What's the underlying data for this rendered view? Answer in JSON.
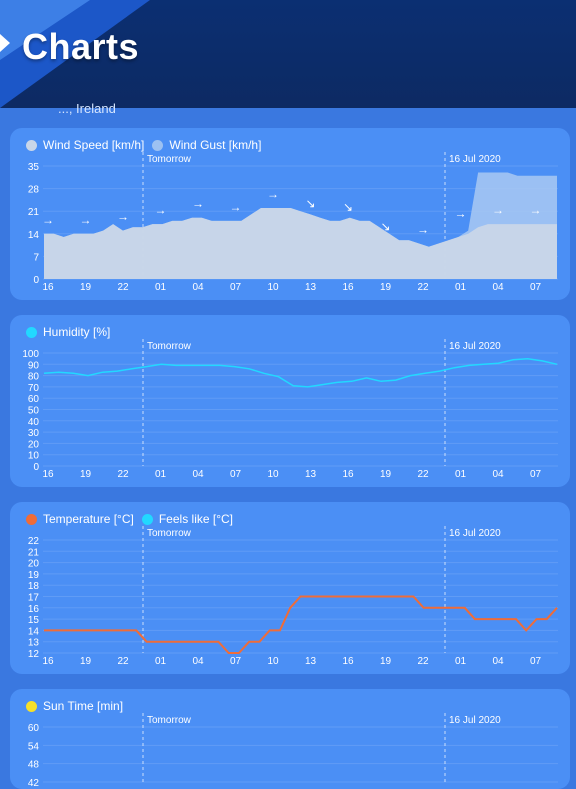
{
  "app": {
    "title": "Charts",
    "location": "..., Ireland"
  },
  "x_ticks": [
    "16",
    "19",
    "22",
    "01",
    "04",
    "07",
    "10",
    "13",
    "16",
    "19",
    "22",
    "01",
    "04",
    "07"
  ],
  "day_markers": [
    "Tomorrow",
    "16 Jul 2020"
  ],
  "chart_data": [
    {
      "type": "area",
      "legend": [
        {
          "name": "Wind Speed [km/h]",
          "color": "#c9d6e8"
        },
        {
          "name": "Wind Gust [km/h]",
          "color": "#9cc1f2"
        }
      ],
      "ylim": [
        0,
        35
      ],
      "yticks": [
        0,
        7,
        14,
        21,
        28,
        35
      ],
      "series": [
        {
          "name": "Wind Speed [km/h]",
          "values": [
            14,
            14,
            13,
            14,
            14,
            14,
            15,
            17,
            15,
            16,
            16,
            17,
            17,
            18,
            18,
            19,
            19,
            18,
            18,
            18,
            18,
            20,
            22,
            22,
            22,
            22,
            21,
            20,
            19,
            18,
            18,
            19,
            18,
            18,
            16,
            14,
            12,
            12,
            11,
            10,
            11,
            12,
            13,
            14,
            16,
            17,
            17,
            17,
            17,
            17,
            17,
            17,
            17
          ]
        },
        {
          "name": "Wind Gust [km/h]",
          "values": [
            14,
            14,
            13,
            14,
            14,
            14,
            15,
            17,
            15,
            16,
            16,
            17,
            17,
            18,
            18,
            19,
            19,
            18,
            18,
            18,
            18,
            20,
            22,
            22,
            22,
            22,
            21,
            20,
            19,
            18,
            18,
            19,
            18,
            18,
            16,
            14,
            12,
            12,
            11,
            10,
            11,
            12,
            13,
            15,
            33,
            33,
            33,
            33,
            32,
            32,
            32,
            32,
            32
          ]
        }
      ],
      "direction_arrows": [
        "→",
        "→",
        "→",
        "→",
        "→",
        "→",
        "→",
        "↘",
        "↘",
        "↘",
        "→",
        "→",
        "→",
        "→"
      ]
    },
    {
      "type": "line",
      "legend": [
        {
          "name": "Humidity [%]",
          "color": "#22d8ff"
        }
      ],
      "ylim": [
        0,
        100
      ],
      "yticks": [
        0,
        10,
        20,
        30,
        40,
        50,
        60,
        70,
        80,
        90,
        100
      ],
      "series": [
        {
          "name": "Humidity [%]",
          "values": [
            82,
            83,
            82,
            80,
            83,
            84,
            86,
            88,
            90,
            89,
            89,
            89,
            89,
            88,
            86,
            82,
            79,
            71,
            70,
            72,
            74,
            75,
            78,
            75,
            76,
            80,
            82,
            84,
            87,
            89,
            90,
            91,
            94,
            95,
            93,
            90
          ]
        }
      ]
    },
    {
      "type": "line",
      "legend": [
        {
          "name": "Temperature [°C]",
          "color": "#ef6c38"
        },
        {
          "name": "Feels like [°C]",
          "color": "#22d8ff"
        }
      ],
      "ylim": [
        12,
        22
      ],
      "yticks": [
        12,
        13,
        14,
        15,
        16,
        17,
        18,
        19,
        20,
        21,
        22
      ],
      "series": [
        {
          "name": "Temperature [°C]",
          "values": [
            14,
            14,
            14,
            14,
            14,
            14,
            14,
            14,
            14,
            14,
            13,
            13,
            13,
            13,
            13,
            13,
            13,
            13,
            12,
            12,
            13,
            13,
            14,
            14,
            16,
            17,
            17,
            17,
            17,
            17,
            17,
            17,
            17,
            17,
            17,
            17,
            17,
            16,
            16,
            16,
            16,
            16,
            15,
            15,
            15,
            15,
            15,
            14,
            15,
            15,
            16
          ]
        }
      ]
    },
    {
      "type": "line",
      "legend": [
        {
          "name": "Sun Time [min]",
          "color": "#f5e02a"
        }
      ],
      "ylim": [
        42,
        60
      ],
      "yticks": [
        60,
        54,
        48,
        42
      ],
      "series": []
    }
  ]
}
